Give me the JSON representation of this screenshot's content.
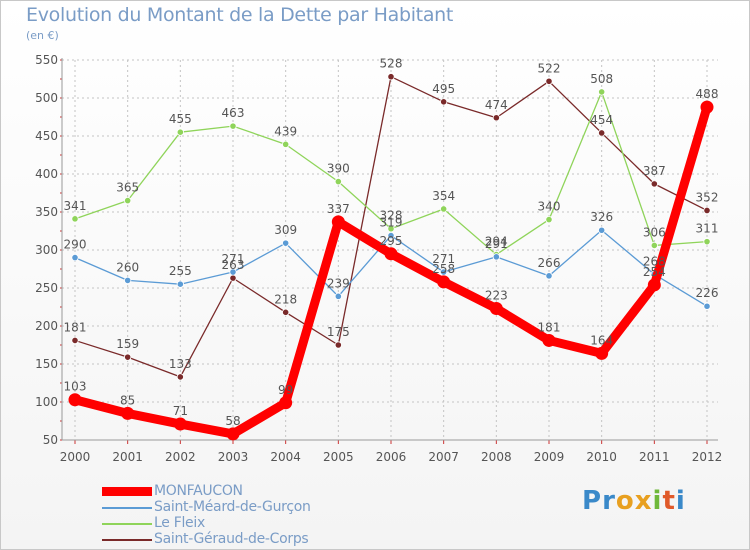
{
  "header": {
    "title": "Evolution du Montant de la Dette par Habitant",
    "unit": "(en €)"
  },
  "logo": {
    "letters": [
      "P",
      "r",
      "o",
      "x",
      "i",
      "t",
      "i"
    ],
    "colors": [
      "#3a89c9",
      "#3a89c9",
      "#e8a020",
      "#e8a020",
      "#6fb83a",
      "#e05a2a",
      "#3a89c9"
    ]
  },
  "chart_data": {
    "type": "line",
    "title": "Evolution du Montant de la Dette par Habitant",
    "subtitle": "(en €)",
    "xlabel": "",
    "ylabel": "",
    "x": [
      "2000",
      "2001",
      "2002",
      "2003",
      "2004",
      "2005",
      "2006",
      "2007",
      "2008",
      "2009",
      "2010",
      "2011",
      "2012"
    ],
    "ylim": [
      50,
      550
    ],
    "yticks": [
      50,
      100,
      150,
      200,
      250,
      300,
      350,
      400,
      450,
      500,
      550
    ],
    "grid": true,
    "legend_position": "bottom-left",
    "series": [
      {
        "name": "MONFAUCON",
        "color": "#ff0000",
        "values": [
          103,
          85,
          71,
          58,
          99,
          337,
          295,
          258,
          223,
          181,
          164,
          254,
          488
        ],
        "labels": [
          "103",
          "85",
          "71",
          "58",
          "99",
          "337",
          "295",
          "258",
          "223",
          "181",
          "164",
          "254",
          "488"
        ]
      },
      {
        "name": "Saint-Méard-de-Gurçon",
        "color": "#5b9bd5",
        "values": [
          290,
          260,
          255,
          271,
          309,
          239,
          319,
          271,
          291,
          266,
          326,
          268,
          226
        ],
        "labels": [
          "290",
          "260",
          "255",
          "271",
          "309",
          "239",
          "319",
          "271",
          "291",
          "266",
          "326",
          "268",
          "226"
        ]
      },
      {
        "name": "Le Fleix",
        "color": "#8fd45a",
        "values": [
          341,
          365,
          455,
          463,
          439,
          390,
          328,
          354,
          294,
          340,
          508,
          306,
          311
        ],
        "labels": [
          "341",
          "365",
          "455",
          "463",
          "439",
          "390",
          "328",
          "354",
          "294",
          "340",
          "508",
          "306",
          "311"
        ]
      },
      {
        "name": "Saint-Géraud-de-Corps",
        "color": "#7a2a2a",
        "values": [
          181,
          159,
          133,
          263,
          218,
          175,
          528,
          495,
          474,
          522,
          454,
          387,
          352
        ],
        "labels": [
          "181",
          "159",
          "133",
          "263",
          "218",
          "175",
          "528",
          "495",
          "474",
          "522",
          "454",
          "387",
          "352"
        ]
      }
    ]
  }
}
